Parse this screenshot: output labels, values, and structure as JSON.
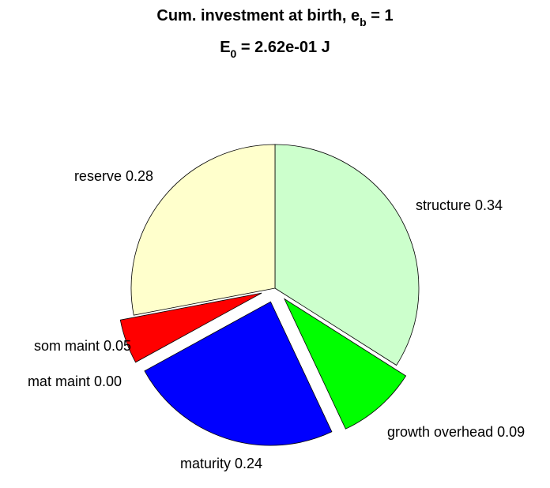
{
  "chart_data": {
    "type": "pie",
    "title": {
      "prefix": "Cum. investment at birth, e",
      "subscript": "b",
      "suffix": " = 1"
    },
    "subtitle": {
      "prefix": "E",
      "subscript": "0",
      "suffix": " = 2.62e-01 J"
    },
    "slices": [
      {
        "name": "structure",
        "value_label": "0.34",
        "value": 0.34,
        "color": "#ccffcc",
        "exploded": false
      },
      {
        "name": "growth overhead",
        "value_label": "0.09",
        "value": 0.09,
        "color": "#00ff00",
        "exploded": true
      },
      {
        "name": "maturity",
        "value_label": "0.24",
        "value": 0.24,
        "color": "#0000ff",
        "exploded": true
      },
      {
        "name": "mat maint",
        "value_label": "0.00",
        "value": 0.0,
        "color": "#ff00ff",
        "exploded": true
      },
      {
        "name": "som maint",
        "value_label": "0.05",
        "value": 0.05,
        "color": "#ff0000",
        "exploded": true
      },
      {
        "name": "reserve",
        "value_label": "0.28",
        "value": 0.28,
        "color": "#ffffcc",
        "exploded": false
      }
    ]
  }
}
